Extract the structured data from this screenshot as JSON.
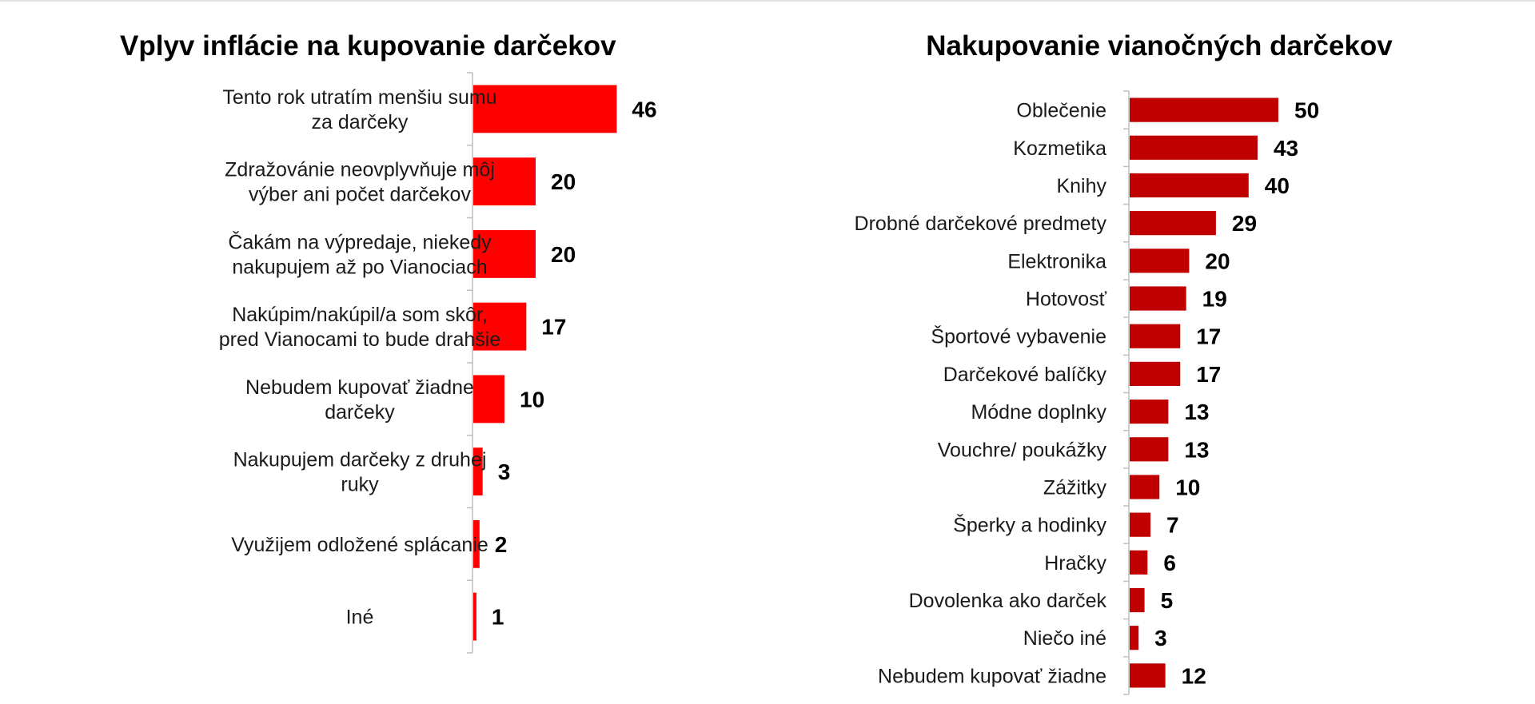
{
  "charts": {
    "left_title": "Vplyv inflácie na kupovanie darčekov",
    "right_title": "Nakupovanie vianočných darčekov"
  },
  "chart_data": [
    {
      "type": "bar",
      "orientation": "horizontal",
      "title": "Vplyv inflácie na kupovanie darčekov",
      "bar_color": "#ff0000",
      "categories": [
        [
          "Tento rok utratím menšiu sumu",
          "za darčeky"
        ],
        [
          "Zdražovánie neovplyvňuje  môj",
          "výber ani počet darčekov"
        ],
        [
          "Čakám na  výpredaje, niekedy",
          "nakupujem až po Vianociach"
        ],
        [
          "Nakúpim/nakúpil/a som skôr,",
          "pred Vianocami to bude drahšie"
        ],
        [
          "Nebudem  kupovať žiadne",
          "darčeky"
        ],
        [
          "Nakupujem darčeky z druhej",
          "ruky"
        ],
        [
          "Využijem  odložené splácanie"
        ],
        [
          "Iné"
        ]
      ],
      "values": [
        46,
        20,
        20,
        17,
        10,
        3,
        2,
        1
      ]
    },
    {
      "type": "bar",
      "orientation": "horizontal",
      "title": "Nakupovanie vianočných darčekov",
      "bar_color": "#c00000",
      "categories": [
        "Oblečenie",
        "Kozmetika",
        "Knihy",
        "Drobné darčekové predmety",
        "Elektronika",
        "Hotovosť",
        "Športové vybavenie ",
        "Darčekové balíčky",
        "Módne doplnky",
        "Vouchre/ poukážky",
        "Zážitky",
        "Šperky a hodinky",
        "Hračky",
        "Dovolenka ako darček",
        "Niečo iné",
        "Nebudem kupovať žiadne"
      ],
      "values": [
        50,
        43,
        40,
        29,
        20,
        19,
        17,
        17,
        13,
        13,
        10,
        7,
        6,
        5,
        3,
        12
      ]
    }
  ]
}
